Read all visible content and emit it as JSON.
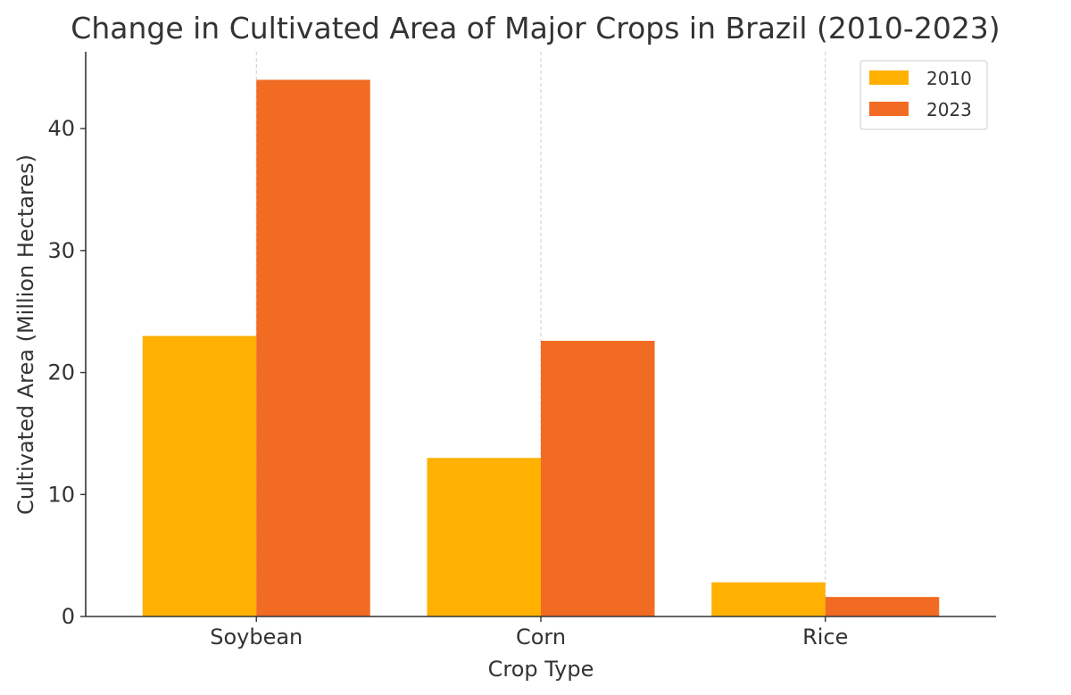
{
  "chart_data": {
    "type": "bar",
    "title": "Change in Cultivated Area of Major Crops in Brazil (2010-2023)",
    "xlabel": "Crop Type",
    "ylabel": "Cultivated Area (Million Hectares)",
    "categories": [
      "Soybean",
      "Corn",
      "Rice"
    ],
    "series": [
      {
        "name": "2010",
        "color": "#FFB000",
        "values": [
          23.0,
          13.0,
          2.8
        ]
      },
      {
        "name": "2023",
        "color": "#F26B23",
        "values": [
          44.0,
          22.6,
          1.6
        ]
      }
    ],
    "ylim": [
      0,
      46.3
    ],
    "yticks": [
      0,
      10,
      20,
      30,
      40
    ],
    "grid": "x-only-dashed",
    "legend_position": "top-right"
  }
}
